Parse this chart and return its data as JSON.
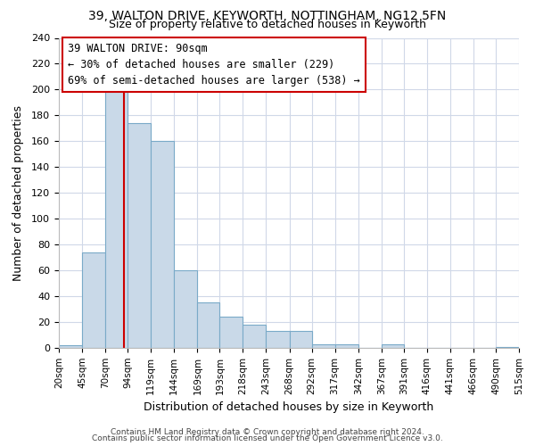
{
  "title_line1": "39, WALTON DRIVE, KEYWORTH, NOTTINGHAM, NG12 5FN",
  "title_line2": "Size of property relative to detached houses in Keyworth",
  "xlabel": "Distribution of detached houses by size in Keyworth",
  "ylabel": "Number of detached properties",
  "bin_edges": [
    20,
    45,
    70,
    94,
    119,
    144,
    169,
    193,
    218,
    243,
    268,
    292,
    317,
    342,
    367,
    391,
    416,
    441,
    466,
    490,
    515
  ],
  "bar_heights": [
    2,
    74,
    200,
    174,
    160,
    60,
    35,
    24,
    18,
    13,
    13,
    3,
    3,
    0,
    3,
    0,
    0,
    0,
    0,
    1
  ],
  "bar_color": "#c9d9e8",
  "bar_edge_color": "#7aaac8",
  "property_line_x": 90,
  "property_line_color": "#cc0000",
  "annotation_title": "39 WALTON DRIVE: 90sqm",
  "annotation_line1": "← 30% of detached houses are smaller (229)",
  "annotation_line2": "69% of semi-detached houses are larger (538) →",
  "annotation_box_color": "#ffffff",
  "annotation_box_edge_color": "#cc0000",
  "ylim": [
    0,
    240
  ],
  "yticks": [
    0,
    20,
    40,
    60,
    80,
    100,
    120,
    140,
    160,
    180,
    200,
    220,
    240
  ],
  "tick_labels": [
    "20sqm",
    "45sqm",
    "70sqm",
    "94sqm",
    "119sqm",
    "144sqm",
    "169sqm",
    "193sqm",
    "218sqm",
    "243sqm",
    "268sqm",
    "292sqm",
    "317sqm",
    "342sqm",
    "367sqm",
    "391sqm",
    "416sqm",
    "441sqm",
    "466sqm",
    "490sqm",
    "515sqm"
  ],
  "footer_line1": "Contains HM Land Registry data © Crown copyright and database right 2024.",
  "footer_line2": "Contains public sector information licensed under the Open Government Licence v3.0.",
  "background_color": "#ffffff",
  "grid_color": "#d0d8e8",
  "title1_fontsize": 10,
  "title2_fontsize": 9,
  "xlabel_fontsize": 9,
  "ylabel_fontsize": 9,
  "ytick_fontsize": 8,
  "xtick_fontsize": 7.5,
  "ann_fontsize": 8.5,
  "footer_fontsize": 6.5
}
